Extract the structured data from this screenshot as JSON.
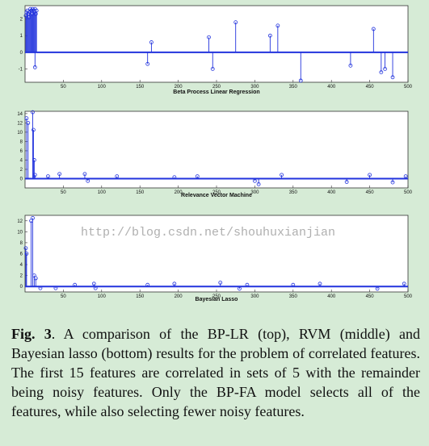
{
  "chart_data": [
    {
      "type": "stem",
      "xlabel": "Beta Process Linear Regression",
      "color": "#2233dd",
      "x": [
        1,
        2,
        3,
        4,
        5,
        6,
        7,
        8,
        9,
        10,
        11,
        12,
        13,
        14,
        15,
        13,
        160,
        165,
        240,
        245,
        275,
        320,
        330,
        360,
        425,
        455,
        465,
        470,
        480
      ],
      "values": [
        2.2,
        2.4,
        2.5,
        2.3,
        2.1,
        2.4,
        2.6,
        2.5,
        2.3,
        2.6,
        2.5,
        2.4,
        2.6,
        2.3,
        2.5,
        -0.9,
        -0.7,
        0.6,
        0.9,
        -1.0,
        1.8,
        1.0,
        1.6,
        -1.7,
        -0.8,
        1.4,
        -1.2,
        -1.0,
        -1.5
      ],
      "xlim": [
        0,
        500
      ],
      "xticks": [
        50,
        100,
        150,
        200,
        250,
        300,
        350,
        400,
        450,
        500
      ],
      "ylim": [
        -1.8,
        2.8
      ],
      "yticks": [
        -1,
        0,
        1,
        2
      ]
    },
    {
      "type": "stem",
      "xlabel": "Relevance Vector Machine",
      "color": "#2233dd",
      "x": [
        2,
        4,
        10,
        11,
        12,
        13,
        30,
        45,
        78,
        82,
        120,
        195,
        225,
        300,
        305,
        335,
        420,
        450,
        480,
        497
      ],
      "values": [
        13,
        12,
        14.3,
        10.5,
        4,
        0.8,
        0.5,
        1,
        1,
        -0.5,
        0.5,
        0.3,
        0.5,
        -0.5,
        -1.2,
        0.8,
        -0.7,
        0.8,
        -0.8,
        0.5
      ],
      "xlim": [
        0,
        500
      ],
      "xticks": [
        50,
        100,
        150,
        200,
        250,
        300,
        350,
        400,
        450,
        500
      ],
      "ylim": [
        -2,
        14.5
      ],
      "yticks": [
        0,
        2,
        4,
        6,
        8,
        10,
        12,
        14
      ]
    },
    {
      "type": "stem",
      "xlabel": "Bayesian Lasso",
      "color": "#2233dd",
      "x": [
        1,
        2,
        8,
        10,
        12,
        14,
        20,
        40,
        65,
        90,
        92,
        160,
        195,
        255,
        280,
        290,
        350,
        385,
        460,
        495
      ],
      "values": [
        7,
        6,
        12,
        12.5,
        2,
        1.5,
        -0.3,
        -0.3,
        0.3,
        0.5,
        -0.3,
        0.3,
        0.5,
        0.7,
        -0.4,
        0.3,
        0.3,
        0.5,
        -0.4,
        0.5
      ],
      "xlim": [
        0,
        500
      ],
      "xticks": [
        50,
        100,
        150,
        200,
        250,
        300,
        350,
        400,
        450,
        500
      ],
      "ylim": [
        -1,
        13
      ],
      "yticks": [
        0,
        2,
        4,
        6,
        8,
        10,
        12
      ]
    }
  ],
  "watermark": "http://blog.csdn.net/shouhuxianjian",
  "caption": {
    "label": "Fig. 3",
    "text": ". A comparison of the BP-LR (top), RVM (middle) and Bayesian lasso (bottom) results for the problem of correlated features. The first 15 features are correlated in sets of 5 with the remainder being noisy features. Only the BP-FA model selects all of the features, while also selecting fewer noisy features."
  }
}
